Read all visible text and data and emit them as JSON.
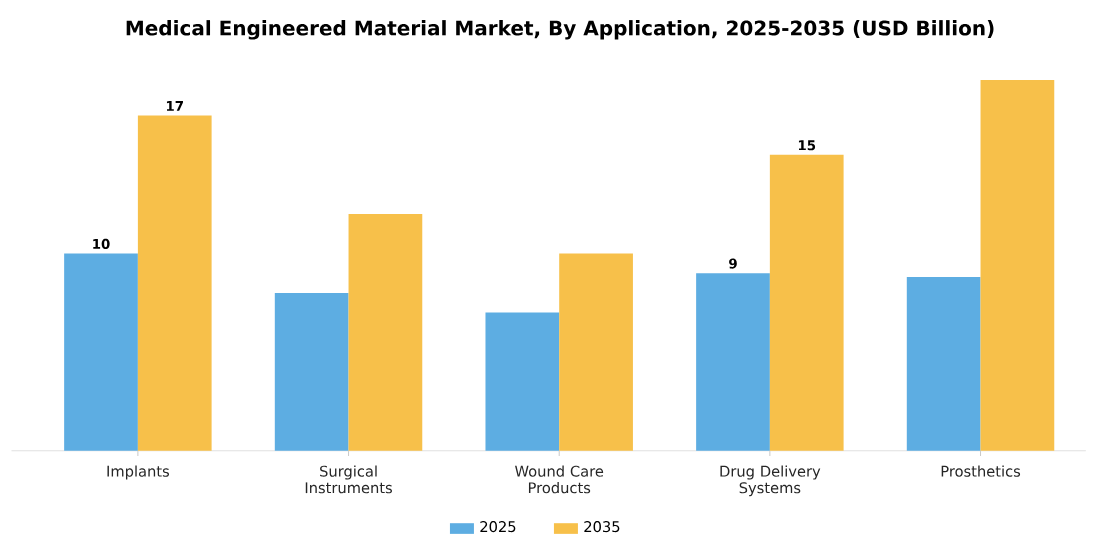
{
  "chart_data": {
    "type": "bar",
    "title": "Medical Engineered Material Market, By Application, 2025-2035 (USD Billion)",
    "categories": [
      "Implants",
      "Surgical Instruments",
      "Wound Care Products",
      "Drug Delivery Systems",
      "Prosthetics"
    ],
    "series": [
      {
        "name": "2025",
        "color": "#5dade2",
        "values": [
          10,
          8.0,
          7.0,
          9,
          8.8
        ],
        "value_labels": [
          "10",
          null,
          null,
          "9",
          null
        ]
      },
      {
        "name": "2035",
        "color": "#f7c04a",
        "values": [
          17,
          12.0,
          10.0,
          15,
          18.8
        ],
        "value_labels": [
          "17",
          null,
          null,
          "15",
          null
        ]
      }
    ],
    "legend": "bottom"
  }
}
